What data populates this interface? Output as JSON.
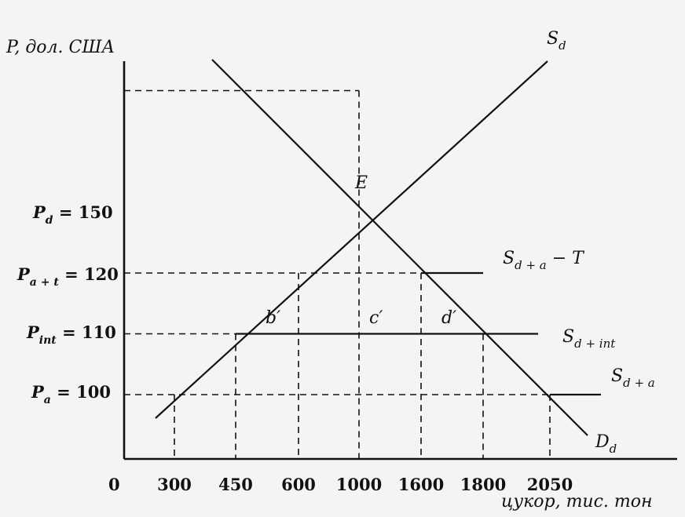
{
  "chart_data": {
    "type": "line",
    "title": "",
    "ylabel": "P, дол. США",
    "xlabel": "цукор, тис. тон",
    "origin_label": "0",
    "x_ticks": [
      300,
      450,
      600,
      1000,
      1600,
      1800,
      2050
    ],
    "x_tick_labels": [
      "300",
      "450",
      "600",
      "1000",
      "1600",
      "1800",
      "2050"
    ],
    "y_ticks": [
      {
        "value": 150,
        "label": "P_d = 150"
      },
      {
        "value": 120,
        "label": "P_a+t = 120"
      },
      {
        "value": 110,
        "label": "P_int = 110"
      },
      {
        "value": 100,
        "label": "P_a = 100"
      }
    ],
    "series": [
      {
        "name": "S_d",
        "points": [
          [
            140,
            90
          ],
          [
            1560,
            198
          ]
        ]
      },
      {
        "name": "D_d",
        "points": [
          [
            480,
            188
          ],
          [
            2230,
            85
          ]
        ]
      },
      {
        "name": "S_d+int",
        "points": [
          [
            450,
            110
          ],
          [
            1800,
            110
          ]
        ]
      },
      {
        "name": "S_d+a",
        "points": [
          [
            2050,
            100
          ],
          [
            2300,
            100
          ]
        ]
      },
      {
        "name": "S_d+a − T",
        "points": [
          [
            1600,
            120
          ],
          [
            1800,
            120
          ]
        ]
      }
    ],
    "annotations": [
      {
        "text": "E",
        "x": 1000,
        "y": 150
      },
      {
        "text": "b′",
        "x": 530,
        "y": 113
      },
      {
        "text": "c′",
        "x": 800,
        "y": 113
      },
      {
        "text": "d′",
        "x": 1400,
        "y": 113
      }
    ]
  },
  "labels": {
    "y_axis": "P, дол. США",
    "x_axis": "цукор, тис. тон",
    "origin": "0",
    "s_d": "S",
    "s_d_sub": "d",
    "d_d": "D",
    "d_d_sub": "d",
    "s_int": "S",
    "s_int_sub": "d + int",
    "s_a": "S",
    "s_a_sub": "d + a",
    "s_at": "S",
    "s_at_sub": "d + a",
    "s_at_suffix": " − T",
    "point_e": "E",
    "b": "b′",
    "c": "c′",
    "d": "d′",
    "p_d": "P",
    "p_d_sub": "d",
    "p_d_val": " = 150",
    "p_at": "P",
    "p_at_sub": "a + t",
    "p_at_val": " = 120",
    "p_int": "P",
    "p_int_sub": "int",
    "p_int_val": " = 110",
    "p_a": "P",
    "p_a_sub": "a",
    "p_a_val": " = 100"
  }
}
